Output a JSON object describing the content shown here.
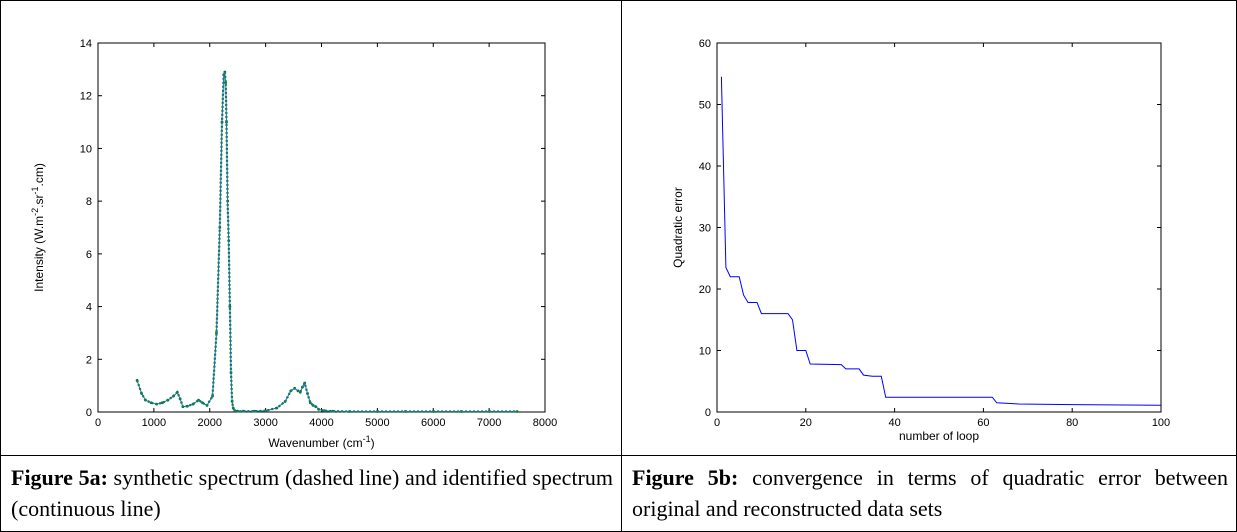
{
  "chart_data": [
    {
      "type": "line",
      "title": "",
      "xlabel": "Wavenumber (cm",
      "xlabel_sup": "-1",
      "xlabel_close": ")",
      "ylabel": "Intensity (W.m",
      "ylabel_sup1": "-2",
      "ylabel_mid": ".sr",
      "ylabel_sup2": "-1",
      "ylabel_end": ".cm)",
      "xlim": [
        0,
        8000
      ],
      "ylim": [
        0,
        14
      ],
      "xticks": [
        0,
        1000,
        2000,
        3000,
        4000,
        5000,
        6000,
        7000,
        8000
      ],
      "yticks": [
        0,
        2,
        4,
        6,
        8,
        10,
        12,
        14
      ],
      "grid": false,
      "series": [
        {
          "color": "#008000",
          "style": "dotted-markers",
          "x": [
            700,
            780,
            850,
            950,
            1050,
            1150,
            1250,
            1350,
            1420,
            1470,
            1520,
            1600,
            1700,
            1800,
            1870,
            1950,
            2050,
            2120,
            2180,
            2220,
            2250,
            2270,
            2285,
            2300,
            2320,
            2340,
            2360,
            2380,
            2400,
            2420,
            2450,
            2500,
            2600,
            2800,
            3000,
            3200,
            3350,
            3450,
            3520,
            3580,
            3620,
            3660,
            3700,
            3750,
            3800,
            3850,
            3900,
            3950,
            4050,
            4200,
            4500,
            5000,
            5500,
            6000,
            6500,
            7000,
            7500
          ],
          "values": [
            1.2,
            0.7,
            0.45,
            0.35,
            0.3,
            0.35,
            0.45,
            0.6,
            0.75,
            0.5,
            0.2,
            0.22,
            0.3,
            0.45,
            0.35,
            0.25,
            0.6,
            3.0,
            7.0,
            11.0,
            12.8,
            12.9,
            12.5,
            11.0,
            8.0,
            6.5,
            4.0,
            1.5,
            0.4,
            0.15,
            0.05,
            0.03,
            0.03,
            0.03,
            0.05,
            0.15,
            0.4,
            0.8,
            0.9,
            0.8,
            0.75,
            0.95,
            1.1,
            0.7,
            0.35,
            0.25,
            0.2,
            0.1,
            0.05,
            0.03,
            0.02,
            0.02,
            0.02,
            0.02,
            0.02,
            0.02,
            0.02
          ]
        },
        {
          "color": "#1f6fbf",
          "style": "solid",
          "x": [
            700,
            780,
            850,
            950,
            1050,
            1150,
            1250,
            1350,
            1420,
            1470,
            1520,
            1600,
            1700,
            1800,
            1870,
            1950,
            2050,
            2120,
            2180,
            2220,
            2250,
            2270,
            2285,
            2300,
            2320,
            2340,
            2360,
            2380,
            2400,
            2420,
            2450,
            2500,
            2600,
            2800,
            3000,
            3200,
            3350,
            3450,
            3520,
            3580,
            3620,
            3660,
            3700,
            3750,
            3800,
            3850,
            3900,
            3950,
            4050,
            4200,
            4500,
            5000,
            5500,
            6000,
            6500,
            7000,
            7500
          ],
          "values": [
            1.2,
            0.7,
            0.45,
            0.35,
            0.3,
            0.35,
            0.45,
            0.6,
            0.75,
            0.5,
            0.2,
            0.22,
            0.3,
            0.45,
            0.35,
            0.25,
            0.6,
            3.0,
            7.0,
            11.0,
            12.8,
            12.9,
            12.5,
            11.0,
            8.0,
            6.5,
            4.0,
            1.5,
            0.4,
            0.15,
            0.05,
            0.03,
            0.03,
            0.03,
            0.05,
            0.15,
            0.4,
            0.8,
            0.9,
            0.8,
            0.75,
            0.95,
            1.1,
            0.7,
            0.35,
            0.25,
            0.2,
            0.1,
            0.05,
            0.03,
            0.02,
            0.02,
            0.02,
            0.02,
            0.02,
            0.02,
            0.02
          ]
        }
      ]
    },
    {
      "type": "line",
      "title": "",
      "xlabel": "number of loop",
      "ylabel": "Quadratic error",
      "xlim": [
        0,
        100
      ],
      "ylim": [
        0,
        60
      ],
      "xticks": [
        0,
        20,
        40,
        60,
        80,
        100
      ],
      "yticks": [
        0,
        10,
        20,
        30,
        40,
        50,
        60
      ],
      "grid": false,
      "series": [
        {
          "color": "#0000ff",
          "style": "solid",
          "x": [
            1,
            2,
            3,
            5,
            6,
            7,
            9,
            10,
            16,
            17,
            18,
            20,
            21,
            28,
            29,
            32,
            33,
            35,
            37,
            38,
            62,
            63,
            68,
            80,
            100
          ],
          "values": [
            54.5,
            23.5,
            22.0,
            22.0,
            19.0,
            17.8,
            17.8,
            16.0,
            16.0,
            15.0,
            10.0,
            10.0,
            7.8,
            7.7,
            7.0,
            7.0,
            6.0,
            5.8,
            5.8,
            2.4,
            2.4,
            1.5,
            1.3,
            1.2,
            1.1
          ]
        }
      ]
    }
  ],
  "captions": {
    "a": {
      "label": "Figure 5a:",
      "text": " synthetic spectrum (dashed line) and identified spectrum (continuous line)"
    },
    "b": {
      "label": "Figure 5b:",
      "text": " convergence in terms of quadratic error between original and reconstructed data sets"
    }
  }
}
